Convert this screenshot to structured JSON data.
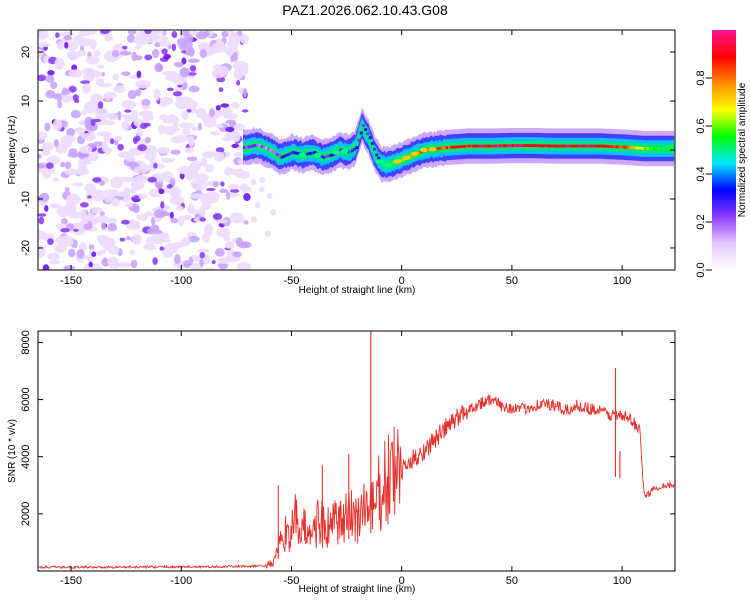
{
  "title": "PAZ1.2026.062.10.43.G08",
  "chart_data": [
    {
      "type": "heatmap",
      "name": "spectrogram",
      "title": "PAZ1.2026.062.10.43.G08",
      "xlabel": "Height of straight line (km)",
      "ylabel": "Frequency (Hz)",
      "xlim": [
        -165,
        124
      ],
      "ylim": [
        -24.5,
        24.5
      ],
      "xticks": [
        -150,
        -100,
        -50,
        0,
        50,
        100
      ],
      "xtick_labels": [
        "-150",
        "-100",
        "-50",
        "0",
        "50",
        "100"
      ],
      "yticks": [
        -20,
        -10,
        0,
        10,
        20
      ],
      "ytick_labels": [
        "-20",
        "-10",
        "0",
        "10",
        "20"
      ],
      "noise_region_x": [
        -165,
        -70
      ],
      "signal_track": {
        "x": [
          -72,
          -66,
          -60,
          -55,
          -50,
          -45,
          -40,
          -36,
          -32,
          -28,
          -24,
          -21,
          -18,
          -15,
          -12,
          -9,
          -6,
          -3,
          0,
          5,
          10,
          15,
          20,
          30,
          40,
          50,
          60,
          70,
          80,
          90,
          100,
          110,
          124
        ],
        "freq": [
          0.5,
          1.0,
          0.0,
          -1.5,
          -0.5,
          -1.0,
          -0.5,
          -1.5,
          -1.0,
          0.0,
          -0.5,
          0.5,
          5.0,
          2.5,
          -1.0,
          -3.0,
          -3.0,
          -2.5,
          -2.0,
          -1.0,
          0.0,
          0.2,
          0.5,
          0.8,
          0.8,
          0.9,
          0.9,
          0.8,
          0.8,
          0.8,
          0.6,
          0.3,
          0.3
        ],
        "amplitude": [
          0.25,
          0.2,
          0.2,
          0.25,
          0.3,
          0.25,
          0.3,
          0.25,
          0.3,
          0.25,
          0.35,
          0.3,
          0.25,
          0.3,
          0.35,
          0.45,
          0.5,
          0.55,
          0.65,
          0.75,
          0.85,
          0.8,
          0.85,
          0.9,
          0.95,
          0.95,
          0.9,
          0.9,
          0.95,
          0.9,
          0.85,
          0.6,
          0.5
        ]
      }
    },
    {
      "type": "line",
      "name": "snr",
      "xlabel": "Height of straight line (km)",
      "ylabel": "SNR (10 * v/v)",
      "xlim": [
        -165,
        124
      ],
      "ylim": [
        0,
        8400
      ],
      "xticks": [
        -150,
        -100,
        -50,
        0,
        50,
        100
      ],
      "xtick_labels": [
        "-150",
        "-100",
        "-50",
        "0",
        "50",
        "100"
      ],
      "yticks": [
        2000,
        4000,
        6000,
        8000
      ],
      "ytick_labels": [
        "2000",
        "4000",
        "6000",
        "8000"
      ],
      "series": [
        {
          "name": "SNR",
          "color": "#e8302a",
          "x": [
            -165,
            -120,
            -80,
            -62,
            -58,
            -55,
            -52,
            -50,
            -48,
            -45,
            -42,
            -40,
            -38,
            -35,
            -32,
            -30,
            -28,
            -25,
            -22,
            -20,
            -18,
            -15,
            -13,
            -12,
            -10,
            -8,
            -5,
            -2,
            0,
            5,
            10,
            15,
            20,
            25,
            30,
            35,
            40,
            45,
            50,
            55,
            60,
            65,
            70,
            75,
            80,
            85,
            90,
            95,
            98,
            100,
            102,
            105,
            108,
            110,
            112,
            115,
            118,
            124
          ],
          "y": [
            130,
            140,
            150,
            180,
            300,
            900,
            1500,
            1300,
            1800,
            1400,
            1600,
            1200,
            1900,
            1500,
            1400,
            1800,
            1600,
            1800,
            2000,
            1900,
            2100,
            2300,
            2100,
            2200,
            2800,
            2900,
            3300,
            3500,
            3500,
            3900,
            4200,
            4600,
            5000,
            5350,
            5650,
            5850,
            6000,
            5800,
            5700,
            5650,
            5800,
            5850,
            5750,
            5600,
            5800,
            5700,
            5600,
            5450,
            5500,
            5350,
            5400,
            5200,
            5000,
            2600,
            2700,
            2900,
            3000,
            3000
          ]
        }
      ],
      "spikes": [
        {
          "x": -56,
          "y": 3000
        },
        {
          "x": -36,
          "y": 3700
        },
        {
          "x": -24,
          "y": 4100
        },
        {
          "x": -14,
          "y": 8400
        },
        {
          "x": 97,
          "y": 7100
        },
        {
          "x": 99,
          "y": 4200
        }
      ]
    }
  ],
  "colorbar": {
    "label": "Normalized spectral amplitude",
    "range": [
      0,
      1
    ],
    "ticks": [
      0.0,
      0.2,
      0.4,
      0.6,
      0.8
    ],
    "tick_labels": [
      "0.0",
      "0.2",
      "0.4",
      "0.6",
      "0.8"
    ],
    "stops": [
      "#ffffff",
      "#e6c8ff",
      "#8c3cff",
      "#0000ff",
      "#00e5ff",
      "#00ff00",
      "#ffff00",
      "#ff8c00",
      "#ff0000",
      "#ff1493"
    ]
  }
}
